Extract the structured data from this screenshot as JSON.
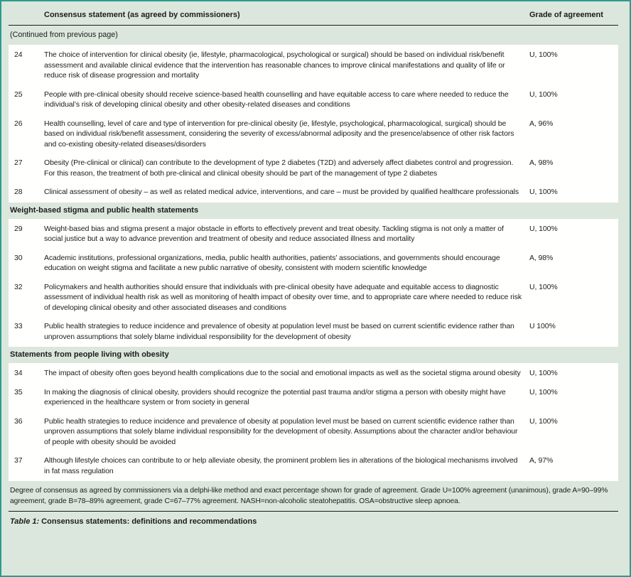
{
  "colors": {
    "frame": "#2d9c8b",
    "band": "#dbe7dc",
    "row_bg": "#fffffe",
    "text": "#1c1c1c"
  },
  "table": {
    "header": {
      "statement": "Consensus statement (as agreed by commissioners)",
      "grade": "Grade of agreement"
    },
    "continued_note": "(Continued from previous page)",
    "sections": [
      {
        "title": null,
        "rows": [
          {
            "num": "24",
            "text": "The choice of intervention for clinical obesity (ie, lifestyle, pharmacological, psychological or surgical) should be based on individual risk/benefit assessment and available clinical evidence that the intervention has reasonable chances to improve clinical manifestations and quality of life or reduce risk of disease progression and mortality",
            "grade": "U, 100%"
          },
          {
            "num": "25",
            "text": "People with pre-clinical obesity should receive science-based health counselling and have equitable access to care where needed to reduce the individual’s risk of developing clinical obesity and other obesity-related diseases and conditions",
            "grade": "U, 100%"
          },
          {
            "num": "26",
            "text": "Health counselling, level of care and type of intervention for pre-clinical obesity (ie, lifestyle, psychological, pharmacological, surgical) should be based on individual risk/benefit assessment, considering the severity of excess/abnormal adiposity and the presence/absence of other risk factors and co-existing obesity-related diseases/disorders",
            "grade": "A, 96%"
          },
          {
            "num": "27",
            "text": "Obesity (Pre-clinical or clinical) can contribute to the development of type 2 diabetes (T2D) and adversely affect diabetes control and progression. For this reason, the treatment of both pre-clinical and clinical obesity should be part of the management of type 2 diabetes",
            "grade": "A, 98%"
          },
          {
            "num": "28",
            "text": "Clinical assessment of obesity – as well as related medical advice, interventions, and care – must be provided by qualified healthcare professionals",
            "grade": "U, 100%"
          }
        ]
      },
      {
        "title": "Weight-based stigma and public health statements",
        "rows": [
          {
            "num": "29",
            "text": "Weight-based bias and stigma present a major obstacle in efforts to effectively prevent and treat obesity. Tackling stigma is not only a matter of social justice but a way to advance prevention and treatment of obesity and reduce associated illness and mortality",
            "grade": "U, 100%"
          },
          {
            "num": "30",
            "text": "Academic institutions, professional organizations, media, public health authorities, patients’ associations, and governments should encourage education on weight stigma and facilitate a new public narrative of obesity, consistent with modern scientific knowledge",
            "grade": "A, 98%"
          },
          {
            "num": "32",
            "text": "Policymakers and health authorities should ensure that individuals with pre-clinical obesity have adequate and equitable access to diagnostic assessment of individual health risk as well as monitoring of health impact of obesity over time, and to appropriate care where needed to reduce risk of developing clinical obesity and other associated diseases and conditions",
            "grade": "U, 100%"
          },
          {
            "num": "33",
            "text": "Public health strategies to reduce incidence and prevalence of obesity at population level must be based on current scientific evidence rather than unproven assumptions that solely blame individual responsibility for the development of obesity",
            "grade": "U 100%"
          }
        ]
      },
      {
        "title": "Statements from people living with obesity",
        "rows": [
          {
            "num": "34",
            "text": "The impact of obesity often goes beyond health complications due to the social and emotional impacts as well as the societal stigma around obesity",
            "grade": "U, 100%"
          },
          {
            "num": "35",
            "text": "In making the diagnosis of clinical obesity, providers should recognize the potential past trauma and/or stigma a person with obesity might have experienced in the healthcare system or from society in general",
            "grade": "U, 100%"
          },
          {
            "num": "36",
            "text": "Public health strategies to reduce incidence and prevalence of obesity at population level must be based on current scientific evidence rather than unproven assumptions that solely blame individual responsibility for the development of obesity. Assumptions about the character and/or behaviour of people with obesity should be avoided",
            "grade": "U, 100%"
          },
          {
            "num": "37",
            "text": "Although lifestyle choices can contribute to or help alleviate obesity, the prominent problem lies in alterations of the biological mechanisms involved in fat mass regulation",
            "grade": "A, 97%"
          }
        ]
      }
    ],
    "footnote": "Degree of consensus as agreed by commissioners via a delphi-like method and exact percentage shown for grade of agreement. Grade U=100% agreement (unanimous), grade A=90–99% agreement, grade B=78–89% agreement, grade C=67–77% agreement. NASH=non-alcoholic steatohepatitis. OSA=obstructive sleep apnoea.",
    "caption_label": "Table 1:",
    "caption_text": "Consensus statements: definitions and recommendations"
  }
}
